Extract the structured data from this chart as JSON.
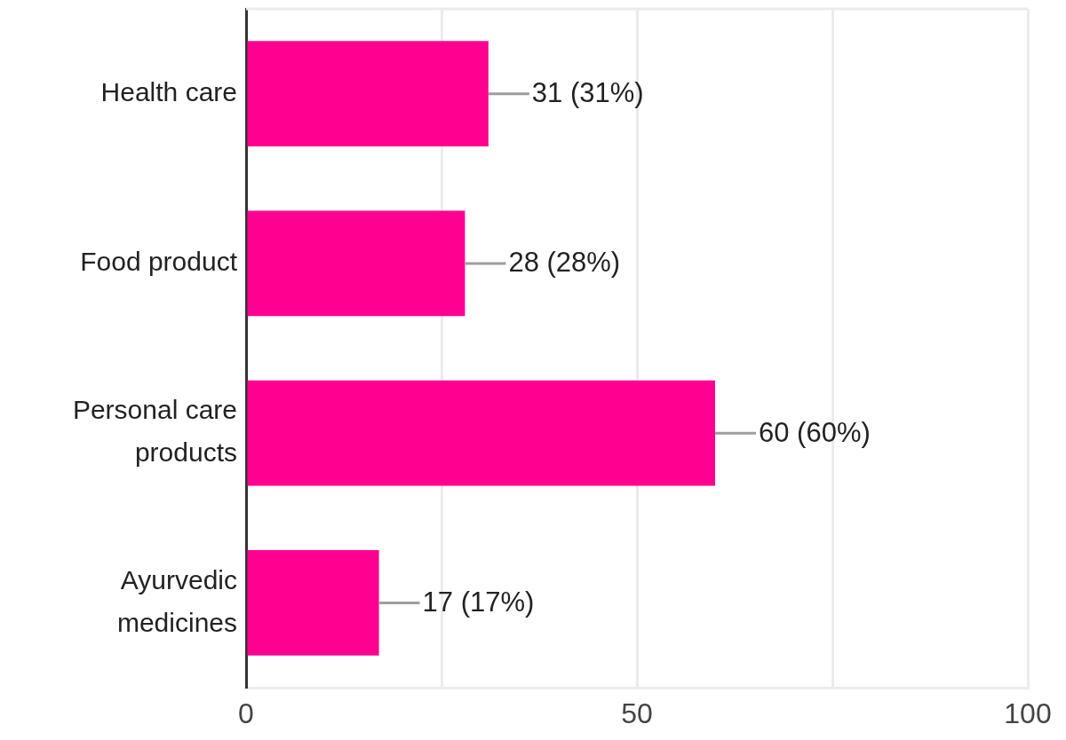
{
  "chart_data": {
    "type": "bar",
    "orientation": "horizontal",
    "categories": [
      "Health care",
      "Food product",
      "Personal care products",
      "Ayurvedic medicines"
    ],
    "values": [
      31,
      28,
      60,
      17
    ],
    "value_labels": [
      "31 (31%)",
      "28 (28%)",
      "60 (60%)",
      "17 (17%)"
    ],
    "color": "#ff0090",
    "xlim": [
      0,
      100
    ],
    "xticks": [
      0,
      {
        "value": 25,
        "label": null
      },
      50,
      {
        "value": 75,
        "label": null
      },
      100
    ],
    "grid": "x",
    "legend": false
  }
}
